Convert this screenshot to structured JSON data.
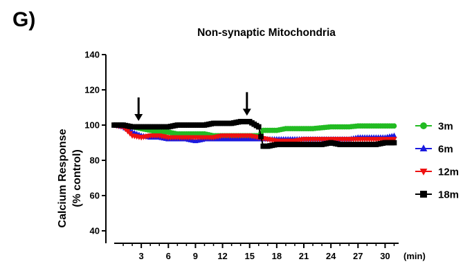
{
  "panel_label": "G)",
  "chart_data": {
    "type": "line",
    "title": "Non-synaptic Mitochondria",
    "ylabel_lines": [
      "Calcium Response",
      "(% control)"
    ],
    "xlabel": "(min)",
    "ylim": [
      30,
      140
    ],
    "y_ticks": [
      40,
      60,
      80,
      100,
      120,
      140
    ],
    "xlim": [
      0,
      31.5
    ],
    "x_ticks": [
      3,
      6,
      9,
      12,
      15,
      18,
      21,
      24,
      27,
      30
    ],
    "x_tick_labels": [
      "3",
      "6",
      "9",
      "12",
      "15",
      "18",
      "21",
      "24",
      "27",
      "30"
    ],
    "grid": false,
    "legend_position": "right",
    "annotations": [
      {
        "type": "arrow-down",
        "x": 2.7,
        "y": 100
      },
      {
        "type": "arrow-down",
        "x": 14.7,
        "y": 103
      }
    ],
    "series": [
      {
        "name": "3m",
        "color": "#22bb22",
        "marker": "circle",
        "points": [
          [
            0,
            100
          ],
          [
            1,
            100
          ],
          [
            2,
            99
          ],
          [
            3,
            98
          ],
          [
            4,
            97
          ],
          [
            5,
            96
          ],
          [
            6,
            96
          ],
          [
            7,
            95
          ],
          [
            8,
            95
          ],
          [
            9,
            95
          ],
          [
            10,
            95
          ],
          [
            11,
            94
          ],
          [
            12,
            94
          ],
          [
            13,
            94
          ],
          [
            14,
            94
          ],
          [
            15,
            94
          ],
          [
            16,
            94
          ],
          [
            16.5,
            97
          ],
          [
            17,
            97
          ],
          [
            18,
            97
          ],
          [
            19,
            98
          ],
          [
            20,
            98
          ],
          [
            21,
            98
          ],
          [
            22,
            98
          ],
          [
            23,
            98.5
          ],
          [
            24,
            99
          ],
          [
            25,
            99
          ],
          [
            26,
            99
          ],
          [
            27,
            99.5
          ],
          [
            28,
            99.5
          ],
          [
            29,
            99.5
          ],
          [
            30,
            99.5
          ],
          [
            31,
            99.5
          ]
        ]
      },
      {
        "name": "6m",
        "color": "#1a1adf",
        "marker": "triangle-up",
        "points": [
          [
            0,
            100
          ],
          [
            1,
            99
          ],
          [
            2,
            96
          ],
          [
            3,
            94
          ],
          [
            4,
            93
          ],
          [
            5,
            93
          ],
          [
            6,
            92
          ],
          [
            7,
            92
          ],
          [
            8,
            92
          ],
          [
            9,
            91
          ],
          [
            10,
            92
          ],
          [
            11,
            92
          ],
          [
            12,
            92
          ],
          [
            13,
            92
          ],
          [
            14,
            92
          ],
          [
            15,
            92
          ],
          [
            16,
            92
          ],
          [
            17,
            92
          ],
          [
            18,
            92
          ],
          [
            19,
            92
          ],
          [
            20,
            92
          ],
          [
            21,
            92
          ],
          [
            22,
            92
          ],
          [
            23,
            92
          ],
          [
            24,
            92
          ],
          [
            25,
            92
          ],
          [
            26,
            92
          ],
          [
            27,
            93
          ],
          [
            28,
            93
          ],
          [
            29,
            93
          ],
          [
            30,
            93
          ],
          [
            31,
            94
          ]
        ]
      },
      {
        "name": "12m",
        "color": "#ee1111",
        "marker": "triangle-down",
        "points": [
          [
            0,
            100
          ],
          [
            1,
            99
          ],
          [
            2,
            94
          ],
          [
            3,
            93
          ],
          [
            4,
            94
          ],
          [
            5,
            94
          ],
          [
            6,
            93
          ],
          [
            7,
            93
          ],
          [
            8,
            93
          ],
          [
            9,
            93
          ],
          [
            10,
            93
          ],
          [
            11,
            93
          ],
          [
            12,
            94
          ],
          [
            13,
            94
          ],
          [
            14,
            94
          ],
          [
            15,
            94
          ],
          [
            16,
            93
          ],
          [
            17,
            92
          ],
          [
            18,
            91
          ],
          [
            19,
            91
          ],
          [
            20,
            91
          ],
          [
            21,
            92
          ],
          [
            22,
            92
          ],
          [
            23,
            92
          ],
          [
            24,
            92
          ],
          [
            25,
            92
          ],
          [
            26,
            92
          ],
          [
            27,
            92
          ],
          [
            28,
            92
          ],
          [
            29,
            92
          ],
          [
            30,
            92
          ],
          [
            31,
            92
          ]
        ]
      },
      {
        "name": "18m",
        "color": "#000000",
        "marker": "square",
        "points": [
          [
            0,
            100
          ],
          [
            1,
            100
          ],
          [
            2,
            99
          ],
          [
            3,
            99
          ],
          [
            4,
            99
          ],
          [
            5,
            99
          ],
          [
            6,
            99
          ],
          [
            7,
            100
          ],
          [
            8,
            100
          ],
          [
            9,
            100
          ],
          [
            10,
            100
          ],
          [
            11,
            101
          ],
          [
            12,
            101
          ],
          [
            13,
            101
          ],
          [
            14,
            102
          ],
          [
            15,
            102
          ],
          [
            16,
            99
          ],
          [
            16.5,
            88
          ],
          [
            17,
            88
          ],
          [
            18,
            89
          ],
          [
            19,
            89
          ],
          [
            20,
            89
          ],
          [
            21,
            89
          ],
          [
            22,
            89
          ],
          [
            23,
            89
          ],
          [
            24,
            90
          ],
          [
            25,
            89
          ],
          [
            26,
            89
          ],
          [
            27,
            89
          ],
          [
            28,
            89
          ],
          [
            29,
            89
          ],
          [
            30,
            90
          ],
          [
            31,
            90
          ]
        ]
      }
    ]
  }
}
